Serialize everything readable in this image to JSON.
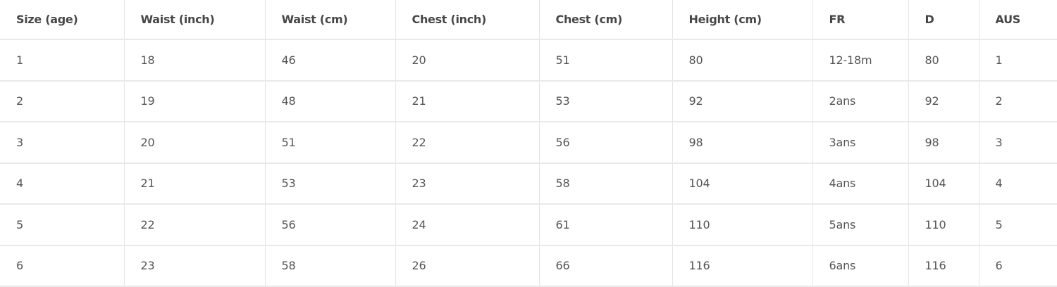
{
  "table": {
    "headers": [
      "Size (age)",
      "Waist (inch)",
      "Waist (cm)",
      "Chest (inch)",
      "Chest (cm)",
      "Height (cm)",
      "FR",
      "D",
      "AUS"
    ],
    "rows": [
      [
        "1",
        "18",
        "46",
        "20",
        "51",
        "80",
        "12-18m",
        "80",
        "1"
      ],
      [
        "2",
        "19",
        "48",
        "21",
        "53",
        "92",
        "2ans",
        "92",
        "2"
      ],
      [
        "3",
        "20",
        "51",
        "22",
        "56",
        "98",
        "3ans",
        "98",
        "3"
      ],
      [
        "4",
        "21",
        "53",
        "23",
        "58",
        "104",
        "4ans",
        "104",
        "4"
      ],
      [
        "5",
        "22",
        "56",
        "24",
        "61",
        "110",
        "5ans",
        "110",
        "5"
      ],
      [
        "6",
        "23",
        "58",
        "26",
        "66",
        "116",
        "6ans",
        "116",
        "6"
      ]
    ]
  }
}
